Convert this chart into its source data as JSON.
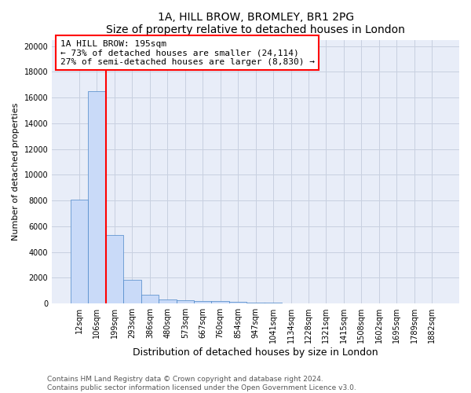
{
  "title1": "1A, HILL BROW, BROMLEY, BR1 2PG",
  "title2": "Size of property relative to detached houses in London",
  "xlabel": "Distribution of detached houses by size in London",
  "ylabel": "Number of detached properties",
  "bar_labels": [
    "12sqm",
    "106sqm",
    "199sqm",
    "293sqm",
    "386sqm",
    "480sqm",
    "573sqm",
    "667sqm",
    "760sqm",
    "854sqm",
    "947sqm",
    "1041sqm",
    "1134sqm",
    "1228sqm",
    "1321sqm",
    "1415sqm",
    "1508sqm",
    "1602sqm",
    "1695sqm",
    "1789sqm",
    "1882sqm"
  ],
  "bar_heights": [
    8100,
    16500,
    5300,
    1850,
    700,
    300,
    230,
    210,
    180,
    150,
    50,
    40,
    30,
    20,
    15,
    10,
    8,
    5,
    3,
    2,
    0
  ],
  "bar_color": "#c9daf8",
  "bar_edge_color": "#4a86c8",
  "red_line_index": 1,
  "annotation_text": "1A HILL BROW: 195sqm\n← 73% of detached houses are smaller (24,114)\n27% of semi-detached houses are larger (8,830) →",
  "annotation_box_color": "white",
  "annotation_box_edge": "red",
  "ylim": [
    0,
    20500
  ],
  "yticks": [
    0,
    2000,
    4000,
    6000,
    8000,
    10000,
    12000,
    14000,
    16000,
    18000,
    20000
  ],
  "grid_color": "#c8d0e0",
  "background_color": "#e8edf8",
  "footer_text": "Contains HM Land Registry data © Crown copyright and database right 2024.\nContains public sector information licensed under the Open Government Licence v3.0.",
  "title1_fontsize": 10,
  "title2_fontsize": 9,
  "xlabel_fontsize": 9,
  "ylabel_fontsize": 8,
  "tick_fontsize": 7,
  "annotation_fontsize": 8,
  "footer_fontsize": 6.5
}
